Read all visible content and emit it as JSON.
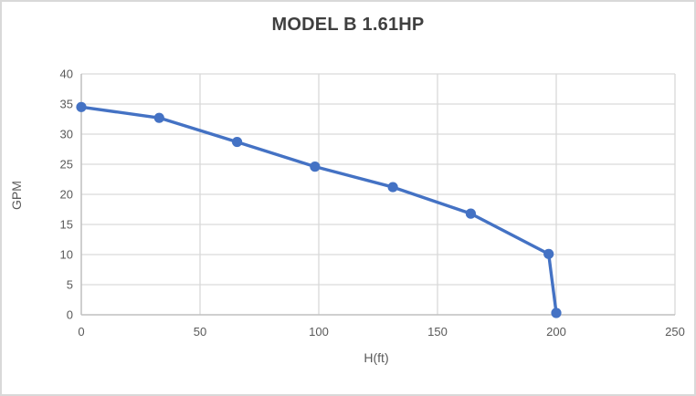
{
  "chart_data": {
    "type": "line",
    "title": "MODEL B 1.61HP",
    "xlabel": "H(ft)",
    "ylabel": "GPM",
    "x": [
      0,
      32.8,
      65.6,
      98.4,
      131.2,
      164,
      196.8,
      200
    ],
    "y": [
      34.5,
      32.7,
      28.7,
      24.6,
      21.2,
      16.8,
      10.1,
      0.3
    ],
    "xlim": [
      0,
      250
    ],
    "ylim": [
      0,
      40
    ],
    "x_ticks": [
      0,
      50,
      100,
      150,
      200,
      250
    ],
    "y_ticks": [
      0,
      5,
      10,
      15,
      20,
      25,
      30,
      35,
      40
    ],
    "grid": true,
    "legend": "none",
    "colors": {
      "line": "#4472C4",
      "marker": "#4472C4",
      "gridline": "#d9d9d9",
      "axis_line": "#bfbfbf",
      "tick_label": "#595959",
      "title": "#3f3f3f",
      "frame_border": "#d9d9d9",
      "background": "#ffffff"
    }
  }
}
